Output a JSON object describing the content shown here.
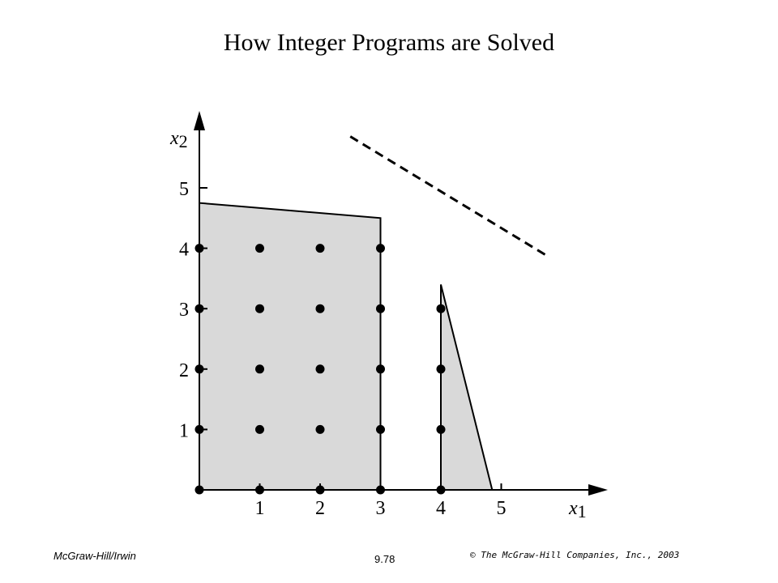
{
  "title": "How Integer Programs are Solved",
  "axes": {
    "x": {
      "label": "x",
      "subscript": "1",
      "ticks": [
        "1",
        "2",
        "3",
        "4",
        "5"
      ]
    },
    "y": {
      "label": "x",
      "subscript": "2",
      "ticks": [
        "1",
        "2",
        "3",
        "4",
        "5"
      ]
    }
  },
  "colors": {
    "region_fill": "#d9d9d9",
    "stroke": "#000000"
  },
  "regions": [
    {
      "name": "left-subproblem",
      "vertices": [
        [
          0,
          0
        ],
        [
          0,
          4.75
        ],
        [
          3,
          4.5
        ],
        [
          3,
          0
        ]
      ]
    },
    {
      "name": "right-subproblem",
      "vertices": [
        [
          4,
          0
        ],
        [
          4,
          3.4
        ],
        [
          4.85,
          0
        ]
      ]
    }
  ],
  "lattice_points": [
    [
      0,
      0
    ],
    [
      1,
      0
    ],
    [
      2,
      0
    ],
    [
      3,
      0
    ],
    [
      4,
      0
    ],
    [
      0,
      1
    ],
    [
      1,
      1
    ],
    [
      2,
      1
    ],
    [
      3,
      1
    ],
    [
      4,
      1
    ],
    [
      0,
      2
    ],
    [
      1,
      2
    ],
    [
      2,
      2
    ],
    [
      3,
      2
    ],
    [
      4,
      2
    ],
    [
      0,
      3
    ],
    [
      1,
      3
    ],
    [
      2,
      3
    ],
    [
      3,
      3
    ],
    [
      4,
      3
    ],
    [
      0,
      4
    ],
    [
      1,
      4
    ],
    [
      2,
      4
    ],
    [
      3,
      4
    ]
  ],
  "objective_line": [
    [
      2.5,
      5.85
    ],
    [
      5.8,
      3.85
    ]
  ],
  "footer": {
    "publisher": "McGraw-Hill/Irwin",
    "page": "9.78",
    "copyright": "© The McGraw-Hill Companies, Inc., 2003"
  }
}
